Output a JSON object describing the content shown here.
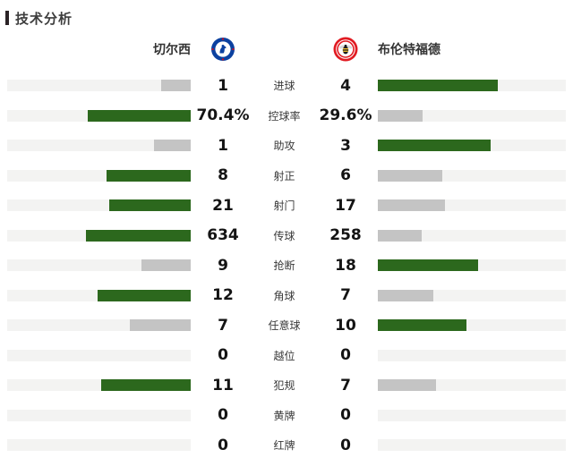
{
  "panel": {
    "title": "技术分析"
  },
  "teams": {
    "home": {
      "name": "切尔西",
      "badge_icon": "chelsea-badge-icon"
    },
    "away": {
      "name": "布伦特福德",
      "badge_icon": "brentford-badge-icon"
    }
  },
  "colors": {
    "win_bar": "#2c681d",
    "lose_bar": "#c4c4c4",
    "track": "#f3f3f2",
    "accent": "#2b2326",
    "chelsea_blue": "#0b41a0",
    "brentford_red": "#e11b22"
  },
  "stats": [
    {
      "label": "进球",
      "home": "1",
      "away": "4",
      "home_num": 1,
      "away_num": 4
    },
    {
      "label": "控球率",
      "home": "70.4%",
      "away": "29.6%",
      "home_num": 70.4,
      "away_num": 29.6
    },
    {
      "label": "助攻",
      "home": "1",
      "away": "3",
      "home_num": 1,
      "away_num": 3
    },
    {
      "label": "射正",
      "home": "8",
      "away": "6",
      "home_num": 8,
      "away_num": 6
    },
    {
      "label": "射门",
      "home": "21",
      "away": "17",
      "home_num": 21,
      "away_num": 17
    },
    {
      "label": "传球",
      "home": "634",
      "away": "258",
      "home_num": 634,
      "away_num": 258
    },
    {
      "label": "抢断",
      "home": "9",
      "away": "18",
      "home_num": 9,
      "away_num": 18
    },
    {
      "label": "角球",
      "home": "12",
      "away": "7",
      "home_num": 12,
      "away_num": 7
    },
    {
      "label": "任意球",
      "home": "7",
      "away": "10",
      "home_num": 7,
      "away_num": 10
    },
    {
      "label": "越位",
      "home": "0",
      "away": "0",
      "home_num": 0,
      "away_num": 0
    },
    {
      "label": "犯规",
      "home": "11",
      "away": "7",
      "home_num": 11,
      "away_num": 7
    },
    {
      "label": "黄牌",
      "home": "0",
      "away": "0",
      "home_num": 0,
      "away_num": 0
    },
    {
      "label": "红牌",
      "home": "0",
      "away": "0",
      "home_num": 0,
      "away_num": 0
    }
  ],
  "chart_data": {
    "type": "bar",
    "orientation": "horizontal-paired",
    "title": "技术分析",
    "categories": [
      "进球",
      "控球率",
      "助攻",
      "射正",
      "射门",
      "传球",
      "抢断",
      "角球",
      "任意球",
      "越位",
      "犯规",
      "黄牌",
      "红牌"
    ],
    "series": [
      {
        "name": "切尔西",
        "values": [
          1,
          70.4,
          1,
          8,
          21,
          634,
          9,
          12,
          7,
          0,
          11,
          0,
          0
        ]
      },
      {
        "name": "布伦特福德",
        "values": [
          4,
          29.6,
          3,
          6,
          17,
          258,
          18,
          7,
          10,
          0,
          7,
          0,
          0
        ]
      }
    ],
    "value_display": {
      "切尔西": [
        "1",
        "70.4%",
        "1",
        "8",
        "21",
        "634",
        "9",
        "12",
        "7",
        "0",
        "11",
        "0",
        "0"
      ],
      "布伦特福德": [
        "4",
        "29.6%",
        "3",
        "6",
        "17",
        "258",
        "18",
        "7",
        "10",
        "0",
        "7",
        "0",
        "0"
      ]
    },
    "bar_scale_note": "bar width = 80% of track × value / (home+away); higher value colored green, lower gray, zero hidden",
    "legend_position": "top",
    "grid": false
  }
}
